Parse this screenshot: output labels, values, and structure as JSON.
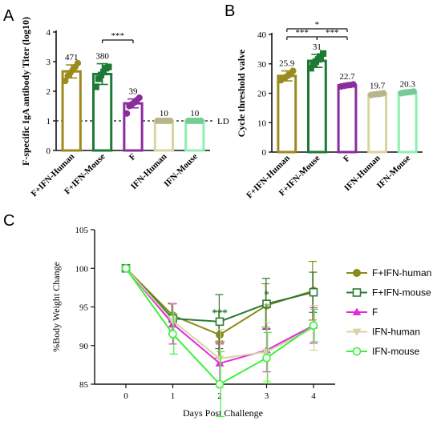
{
  "panels": {
    "a": "A",
    "b": "B",
    "c": "C"
  },
  "chart_data": [
    {
      "panel": "A",
      "type": "bar",
      "ylabel": "F-specific IgA antibody  Titer (log10)",
      "ylim": [
        0,
        4
      ],
      "yticks": [
        "0",
        "1",
        "2",
        "3",
        "4"
      ],
      "categories": [
        "F+IFN-Human",
        "F+IFN-Mouse",
        "F",
        "IFN-Human",
        "IFN-Mouse"
      ],
      "values": [
        2.67,
        2.58,
        1.59,
        1.0,
        1.0
      ],
      "errors": [
        0.22,
        0.35,
        0.15,
        0.0,
        0.0
      ],
      "data_labels": [
        "471",
        "380",
        "39",
        "10",
        "10"
      ],
      "colors": [
        "#9a8a1f",
        "#1d7a35",
        "#8b2c9e",
        "#d9d5a2",
        "#8cf0b0"
      ],
      "points": [
        [
          2.35,
          2.52,
          2.62,
          2.72,
          2.82,
          2.95
        ],
        [
          2.15,
          2.42,
          2.55,
          2.65,
          2.78,
          2.82
        ],
        [
          1.25,
          1.5,
          1.56,
          1.62,
          1.7,
          1.78
        ],
        [
          1.0,
          1.0,
          1.0,
          1.0,
          1.0
        ],
        [
          1.0,
          1.0,
          1.0,
          1.0,
          1.0
        ]
      ],
      "reference_line": {
        "y": 1,
        "label": "LD"
      },
      "significance": [
        {
          "from": 1,
          "to": 2,
          "label": "***"
        }
      ]
    },
    {
      "panel": "B",
      "type": "bar",
      "ylabel": "Cycle threshold valve",
      "ylim": [
        0,
        40
      ],
      "yticks": [
        "0",
        "10",
        "20",
        "30",
        "40"
      ],
      "categories": [
        "F+IFN-Human",
        "F+IFN-Mouse",
        "F",
        "IFN-Human",
        "IFN-Mouse"
      ],
      "values": [
        25.9,
        31.0,
        22.7,
        19.7,
        20.3
      ],
      "errors": [
        1.7,
        2.2,
        0.4,
        0.3,
        0.3
      ],
      "data_labels": [
        "25.9",
        "31",
        "22.7",
        "19.7",
        "20.3"
      ],
      "colors": [
        "#9a8a1f",
        "#1d7a35",
        "#8b2c9e",
        "#d9d5a2",
        "#8cf0b0"
      ],
      "points": [
        [
          24.4,
          25.0,
          25.5,
          26.0,
          26.6,
          27.6
        ],
        [
          28.5,
          30.0,
          30.8,
          31.5,
          32.5,
          33.5
        ],
        [
          22.3,
          22.5,
          22.7,
          22.8,
          23.0
        ],
        [
          19.4,
          19.6,
          19.7,
          19.8,
          20.0
        ],
        [
          20.0,
          20.2,
          20.3,
          20.4,
          20.6
        ]
      ],
      "significance": [
        {
          "from": 0,
          "to": 2,
          "label": "*"
        },
        {
          "from": 0,
          "to": 1,
          "label": "***"
        },
        {
          "from": 1,
          "to": 2,
          "label": "***"
        }
      ]
    },
    {
      "panel": "C",
      "type": "line",
      "xlabel": "Days Post Challenge",
      "ylabel": "%Body Weight Change",
      "x": [
        0,
        1,
        2,
        3,
        4
      ],
      "xticks": [
        "0",
        "1",
        "2",
        "3",
        "4"
      ],
      "ylim": [
        85,
        105
      ],
      "yticks": [
        "85",
        "90",
        "95",
        "100",
        "105"
      ],
      "series": [
        {
          "name": "F+IFN-human",
          "color": "#8b8a1a",
          "marker": "circle",
          "filled": true,
          "values": [
            100,
            93.9,
            91.4,
            95.2,
            97.1
          ],
          "errors": [
            0,
            1.5,
            3.0,
            2.8,
            3.8
          ]
        },
        {
          "name": "F+IFN-mouse",
          "color": "#2a7a35",
          "marker": "square",
          "filled": false,
          "values": [
            100,
            93.5,
            93.1,
            95.4,
            96.9
          ],
          "errors": [
            0,
            2.0,
            3.5,
            3.3,
            2.6
          ]
        },
        {
          "name": "F",
          "color": "#e02bd6",
          "marker": "triangle",
          "filled": true,
          "values": [
            100,
            92.8,
            87.7,
            89.4,
            92.6
          ],
          "errors": [
            0,
            2.6,
            2.5,
            2.8,
            2.3
          ]
        },
        {
          "name": "IFN-human",
          "color": "#d8d2a8",
          "marker": "triangle-down",
          "filled": true,
          "values": [
            100,
            93.2,
            88.3,
            89.2,
            92.3
          ],
          "errors": [
            0,
            2.3,
            3.8,
            3.8,
            2.9
          ]
        },
        {
          "name": "IFN-mouse",
          "color": "#3ef03a",
          "marker": "circle",
          "filled": false,
          "values": [
            100,
            91.5,
            85.0,
            88.4,
            92.6
          ],
          "errors": [
            0,
            2.6,
            4.2,
            3.3,
            2.1
          ]
        }
      ],
      "annotations": [
        {
          "x": 2,
          "y": 93.8,
          "text": "***",
          "color": "#2a7a35"
        },
        {
          "x": 2,
          "y": 89.8,
          "text": "**",
          "color": "#8b8a1a"
        },
        {
          "x": 3,
          "y": 96.2,
          "text": "*",
          "color": "#2a7a35"
        },
        {
          "x": 3,
          "y": 94.6,
          "text": "*",
          "color": "#8b8a1a"
        }
      ]
    }
  ]
}
